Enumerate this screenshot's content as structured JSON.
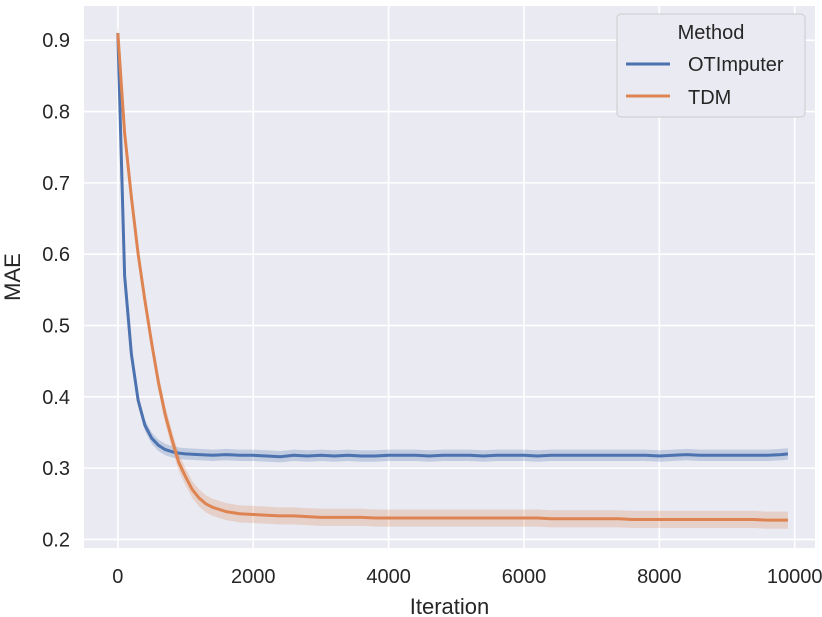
{
  "chart_data": {
    "type": "line",
    "xlabel": "Iteration",
    "ylabel": "MAE",
    "xlim": [
      -500,
      10300
    ],
    "ylim": [
      0.188,
      0.948
    ],
    "xticks": [
      0,
      2000,
      4000,
      6000,
      8000,
      10000
    ],
    "yticks": [
      0.2,
      0.3,
      0.4,
      0.5,
      0.6,
      0.7,
      0.8,
      0.9
    ],
    "xtick_labels": [
      "0",
      "2000",
      "4000",
      "6000",
      "8000",
      "10000"
    ],
    "ytick_labels": [
      "0.2",
      "0.3",
      "0.4",
      "0.5",
      "0.6",
      "0.7",
      "0.8",
      "0.9"
    ],
    "grid": true,
    "background_color": "#eaeaf2",
    "legend": {
      "title": "Method",
      "position": "top-right"
    },
    "series": [
      {
        "name": "OTImputer",
        "color": "#4c72b0",
        "x": [
          0,
          100,
          200,
          300,
          400,
          500,
          600,
          700,
          800,
          900,
          1000,
          1200,
          1400,
          1600,
          1800,
          2000,
          2200,
          2400,
          2600,
          2800,
          3000,
          3200,
          3400,
          3600,
          3800,
          4000,
          4200,
          4400,
          4600,
          4800,
          5000,
          5200,
          5400,
          5600,
          5800,
          6000,
          6200,
          6400,
          6600,
          6800,
          7000,
          7200,
          7400,
          7600,
          7800,
          8000,
          8200,
          8400,
          8600,
          8800,
          9000,
          9200,
          9400,
          9600,
          9800,
          9900
        ],
        "values": [
          0.91,
          0.57,
          0.46,
          0.395,
          0.36,
          0.342,
          0.332,
          0.326,
          0.323,
          0.321,
          0.32,
          0.319,
          0.318,
          0.319,
          0.318,
          0.318,
          0.317,
          0.316,
          0.318,
          0.317,
          0.318,
          0.317,
          0.318,
          0.317,
          0.317,
          0.318,
          0.318,
          0.318,
          0.317,
          0.318,
          0.318,
          0.318,
          0.317,
          0.318,
          0.318,
          0.318,
          0.317,
          0.318,
          0.318,
          0.318,
          0.318,
          0.318,
          0.318,
          0.318,
          0.318,
          0.317,
          0.318,
          0.319,
          0.318,
          0.318,
          0.318,
          0.318,
          0.318,
          0.318,
          0.319,
          0.32
        ],
        "band": 0.008
      },
      {
        "name": "TDM",
        "color": "#dd8452",
        "x": [
          0,
          100,
          200,
          300,
          400,
          500,
          600,
          700,
          800,
          900,
          1000,
          1100,
          1200,
          1300,
          1400,
          1600,
          1800,
          2000,
          2200,
          2400,
          2600,
          2800,
          3000,
          3200,
          3400,
          3600,
          3800,
          4000,
          4200,
          4400,
          4600,
          4800,
          5000,
          5200,
          5400,
          5600,
          5800,
          6000,
          6200,
          6400,
          6600,
          6800,
          7000,
          7200,
          7400,
          7600,
          7800,
          8000,
          8200,
          8400,
          8600,
          8800,
          9000,
          9200,
          9400,
          9600,
          9800,
          9900
        ],
        "values": [
          0.91,
          0.77,
          0.68,
          0.6,
          0.535,
          0.475,
          0.42,
          0.375,
          0.34,
          0.308,
          0.288,
          0.27,
          0.258,
          0.25,
          0.245,
          0.239,
          0.236,
          0.235,
          0.234,
          0.233,
          0.233,
          0.232,
          0.231,
          0.231,
          0.231,
          0.231,
          0.23,
          0.23,
          0.23,
          0.23,
          0.23,
          0.23,
          0.23,
          0.23,
          0.23,
          0.23,
          0.23,
          0.23,
          0.23,
          0.229,
          0.229,
          0.229,
          0.229,
          0.229,
          0.229,
          0.228,
          0.228,
          0.228,
          0.228,
          0.228,
          0.228,
          0.228,
          0.228,
          0.228,
          0.228,
          0.227,
          0.227,
          0.227
        ],
        "band": 0.012
      }
    ]
  }
}
